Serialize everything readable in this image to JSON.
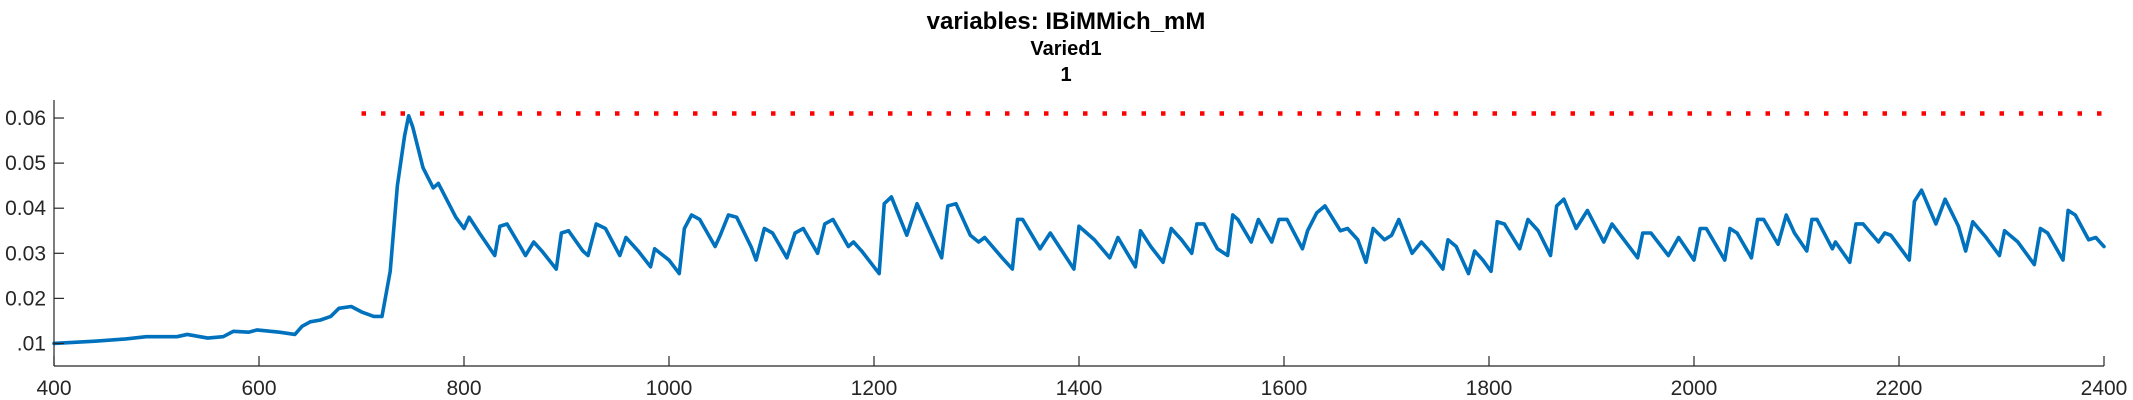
{
  "chart_data": {
    "type": "line",
    "title": "variables: IBiMMich_mM",
    "subtitle": "Varied1",
    "subtitle2": "1",
    "xlabel": "",
    "ylabel": "",
    "xlim": [
      400,
      2400
    ],
    "ylim": [
      0.005,
      0.064
    ],
    "xticks": [
      400,
      600,
      800,
      1000,
      1200,
      1400,
      1600,
      1800,
      2000,
      2200,
      2400
    ],
    "yticks": [
      0.01,
      0.02,
      0.03,
      0.04,
      0.05,
      0.06
    ],
    "xtick_labels": [
      "400",
      "600",
      "800",
      "1000",
      "1200",
      "1400",
      "1600",
      "1800",
      "2000",
      "2200",
      "2400"
    ],
    "ytick_labels": [
      ".01",
      "0.02",
      "0.03",
      "0.04",
      "0.05",
      "0.06"
    ],
    "grid": false,
    "series": [
      {
        "style": "solid",
        "color": "#0072BD",
        "points": [
          [
            400,
            0.01
          ],
          [
            440,
            0.0105
          ],
          [
            470,
            0.011
          ],
          [
            490,
            0.0115
          ],
          [
            520,
            0.0115
          ],
          [
            530,
            0.012
          ],
          [
            550,
            0.0112
          ],
          [
            565,
            0.0115
          ],
          [
            575,
            0.0127
          ],
          [
            590,
            0.0125
          ],
          [
            598,
            0.013
          ],
          [
            620,
            0.0125
          ],
          [
            635,
            0.012
          ],
          [
            642,
            0.0138
          ],
          [
            650,
            0.0148
          ],
          [
            660,
            0.0152
          ],
          [
            670,
            0.016
          ],
          [
            678,
            0.0178
          ],
          [
            690,
            0.0182
          ],
          [
            700,
            0.017
          ],
          [
            712,
            0.016
          ],
          [
            720,
            0.016
          ],
          [
            728,
            0.026
          ],
          [
            735,
            0.045
          ],
          [
            742,
            0.056
          ],
          [
            746,
            0.0605
          ],
          [
            750,
            0.058
          ],
          [
            760,
            0.049
          ],
          [
            770,
            0.0445
          ],
          [
            775,
            0.0455
          ],
          [
            792,
            0.038
          ],
          [
            800,
            0.0355
          ],
          [
            805,
            0.038
          ],
          [
            815,
            0.0345
          ],
          [
            830,
            0.0295
          ],
          [
            835,
            0.036
          ],
          [
            842,
            0.0365
          ],
          [
            855,
            0.0315
          ],
          [
            860,
            0.0295
          ],
          [
            868,
            0.0325
          ],
          [
            876,
            0.0305
          ],
          [
            890,
            0.0265
          ],
          [
            895,
            0.0345
          ],
          [
            902,
            0.035
          ],
          [
            916,
            0.0305
          ],
          [
            921,
            0.0295
          ],
          [
            929,
            0.0365
          ],
          [
            938,
            0.0355
          ],
          [
            952,
            0.0295
          ],
          [
            958,
            0.0335
          ],
          [
            970,
            0.0305
          ],
          [
            982,
            0.027
          ],
          [
            986,
            0.031
          ],
          [
            1000,
            0.0285
          ],
          [
            1010,
            0.0255
          ],
          [
            1015,
            0.0355
          ],
          [
            1022,
            0.0385
          ],
          [
            1030,
            0.0375
          ],
          [
            1045,
            0.0315
          ],
          [
            1050,
            0.034
          ],
          [
            1058,
            0.0385
          ],
          [
            1066,
            0.038
          ],
          [
            1080,
            0.0315
          ],
          [
            1085,
            0.0285
          ],
          [
            1093,
            0.0355
          ],
          [
            1101,
            0.0345
          ],
          [
            1115,
            0.029
          ],
          [
            1123,
            0.0345
          ],
          [
            1131,
            0.0355
          ],
          [
            1145,
            0.03
          ],
          [
            1152,
            0.0365
          ],
          [
            1160,
            0.0375
          ],
          [
            1175,
            0.0315
          ],
          [
            1180,
            0.0325
          ],
          [
            1188,
            0.0305
          ],
          [
            1205,
            0.0255
          ],
          [
            1210,
            0.041
          ],
          [
            1217,
            0.0425
          ],
          [
            1232,
            0.034
          ],
          [
            1242,
            0.041
          ],
          [
            1255,
            0.0345
          ],
          [
            1266,
            0.029
          ],
          [
            1272,
            0.0405
          ],
          [
            1280,
            0.041
          ],
          [
            1294,
            0.034
          ],
          [
            1302,
            0.0325
          ],
          [
            1308,
            0.0335
          ],
          [
            1325,
            0.029
          ],
          [
            1335,
            0.0265
          ],
          [
            1340,
            0.0375
          ],
          [
            1345,
            0.0375
          ],
          [
            1362,
            0.031
          ],
          [
            1372,
            0.0345
          ],
          [
            1395,
            0.0265
          ],
          [
            1400,
            0.036
          ],
          [
            1415,
            0.033
          ],
          [
            1430,
            0.029
          ],
          [
            1438,
            0.0335
          ],
          [
            1455,
            0.027
          ],
          [
            1460,
            0.035
          ],
          [
            1470,
            0.0315
          ],
          [
            1482,
            0.028
          ],
          [
            1490,
            0.0355
          ],
          [
            1500,
            0.033
          ],
          [
            1510,
            0.03
          ],
          [
            1515,
            0.0365
          ],
          [
            1522,
            0.0365
          ],
          [
            1535,
            0.031
          ],
          [
            1545,
            0.0295
          ],
          [
            1550,
            0.0385
          ],
          [
            1555,
            0.0375
          ],
          [
            1568,
            0.0325
          ],
          [
            1575,
            0.0375
          ],
          [
            1588,
            0.0325
          ],
          [
            1595,
            0.0375
          ],
          [
            1603,
            0.0375
          ],
          [
            1618,
            0.031
          ],
          [
            1623,
            0.035
          ],
          [
            1632,
            0.039
          ],
          [
            1640,
            0.0405
          ],
          [
            1655,
            0.035
          ],
          [
            1662,
            0.0355
          ],
          [
            1672,
            0.033
          ],
          [
            1680,
            0.028
          ],
          [
            1687,
            0.0355
          ],
          [
            1698,
            0.033
          ],
          [
            1705,
            0.034
          ],
          [
            1712,
            0.0375
          ],
          [
            1725,
            0.03
          ],
          [
            1734,
            0.0325
          ],
          [
            1742,
            0.0305
          ],
          [
            1755,
            0.0265
          ],
          [
            1760,
            0.033
          ],
          [
            1768,
            0.0315
          ],
          [
            1780,
            0.0255
          ],
          [
            1786,
            0.0305
          ],
          [
            1794,
            0.0285
          ],
          [
            1802,
            0.026
          ],
          [
            1808,
            0.037
          ],
          [
            1815,
            0.0365
          ],
          [
            1830,
            0.031
          ],
          [
            1838,
            0.0375
          ],
          [
            1848,
            0.035
          ],
          [
            1860,
            0.0295
          ],
          [
            1866,
            0.0405
          ],
          [
            1873,
            0.042
          ],
          [
            1885,
            0.0355
          ],
          [
            1896,
            0.0395
          ],
          [
            1912,
            0.0325
          ],
          [
            1920,
            0.0365
          ],
          [
            1930,
            0.0335
          ],
          [
            1945,
            0.029
          ],
          [
            1950,
            0.0345
          ],
          [
            1958,
            0.0345
          ],
          [
            1975,
            0.0295
          ],
          [
            1985,
            0.0335
          ],
          [
            2000,
            0.0285
          ],
          [
            2006,
            0.0355
          ],
          [
            2012,
            0.0355
          ],
          [
            2030,
            0.0285
          ],
          [
            2035,
            0.0355
          ],
          [
            2042,
            0.0345
          ],
          [
            2056,
            0.029
          ],
          [
            2062,
            0.0375
          ],
          [
            2068,
            0.0375
          ],
          [
            2082,
            0.032
          ],
          [
            2090,
            0.0385
          ],
          [
            2098,
            0.0345
          ],
          [
            2110,
            0.0305
          ],
          [
            2115,
            0.0375
          ],
          [
            2120,
            0.0375
          ],
          [
            2135,
            0.031
          ],
          [
            2138,
            0.0325
          ],
          [
            2152,
            0.028
          ],
          [
            2158,
            0.0365
          ],
          [
            2165,
            0.0365
          ],
          [
            2180,
            0.0325
          ],
          [
            2186,
            0.0345
          ],
          [
            2192,
            0.034
          ],
          [
            2210,
            0.0285
          ],
          [
            2215,
            0.0415
          ],
          [
            2222,
            0.044
          ],
          [
            2236,
            0.0365
          ],
          [
            2245,
            0.042
          ],
          [
            2258,
            0.036
          ],
          [
            2265,
            0.0305
          ],
          [
            2272,
            0.037
          ],
          [
            2285,
            0.0335
          ],
          [
            2298,
            0.0295
          ],
          [
            2303,
            0.035
          ],
          [
            2316,
            0.0325
          ],
          [
            2332,
            0.0275
          ],
          [
            2338,
            0.0355
          ],
          [
            2345,
            0.0345
          ],
          [
            2360,
            0.0285
          ],
          [
            2365,
            0.0395
          ],
          [
            2372,
            0.0385
          ],
          [
            2385,
            0.033
          ],
          [
            2392,
            0.0335
          ],
          [
            2400,
            0.0315
          ]
        ]
      },
      {
        "style": "dotted",
        "color": "#FF0000",
        "points": [
          [
            700,
            0.061
          ],
          [
            2400,
            0.061
          ]
        ]
      }
    ]
  }
}
